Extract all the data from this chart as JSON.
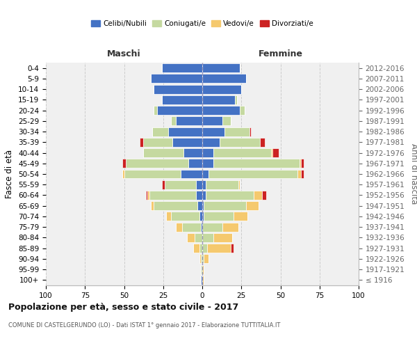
{
  "age_groups": [
    "100+",
    "95-99",
    "90-94",
    "85-89",
    "80-84",
    "75-79",
    "70-74",
    "65-69",
    "60-64",
    "55-59",
    "50-54",
    "45-49",
    "40-44",
    "35-39",
    "30-34",
    "25-29",
    "20-24",
    "15-19",
    "10-14",
    "5-9",
    "0-4"
  ],
  "birth_years": [
    "≤ 1916",
    "1917-1921",
    "1922-1926",
    "1927-1931",
    "1932-1936",
    "1937-1941",
    "1942-1946",
    "1947-1951",
    "1952-1956",
    "1957-1961",
    "1962-1966",
    "1967-1971",
    "1972-1976",
    "1977-1981",
    "1982-1986",
    "1987-1991",
    "1992-1996",
    "1997-2001",
    "2002-2006",
    "2007-2011",
    "2012-2016"
  ],
  "colors": {
    "celibe": "#4472c4",
    "coniugato": "#c5d9a0",
    "vedovo": "#f5c96e",
    "divorziato": "#cc2222"
  },
  "maschi": {
    "celibe": [
      1,
      0,
      0,
      0,
      0,
      1,
      2,
      3,
      4,
      4,
      14,
      9,
      12,
      19,
      22,
      17,
      29,
      26,
      31,
      33,
      26
    ],
    "coniugato": [
      0,
      1,
      1,
      2,
      5,
      12,
      18,
      28,
      30,
      20,
      36,
      40,
      26,
      19,
      10,
      3,
      2,
      0,
      0,
      0,
      0
    ],
    "vedovo": [
      0,
      0,
      1,
      4,
      5,
      4,
      3,
      2,
      1,
      0,
      1,
      0,
      0,
      0,
      0,
      0,
      0,
      0,
      0,
      0,
      0
    ],
    "divorziato": [
      0,
      0,
      0,
      0,
      0,
      0,
      0,
      0,
      1,
      2,
      0,
      2,
      0,
      2,
      0,
      0,
      0,
      0,
      0,
      0,
      0
    ]
  },
  "femmine": {
    "nubile": [
      0,
      0,
      0,
      0,
      0,
      0,
      1,
      1,
      2,
      2,
      4,
      7,
      7,
      11,
      14,
      13,
      24,
      21,
      25,
      28,
      24
    ],
    "coniugata": [
      0,
      0,
      1,
      3,
      7,
      13,
      19,
      27,
      31,
      21,
      57,
      55,
      37,
      26,
      16,
      5,
      3,
      1,
      0,
      0,
      0
    ],
    "vedova": [
      1,
      1,
      3,
      15,
      12,
      10,
      9,
      8,
      5,
      1,
      2,
      1,
      1,
      0,
      0,
      0,
      0,
      0,
      0,
      0,
      0
    ],
    "divorziata": [
      0,
      0,
      0,
      2,
      0,
      0,
      0,
      0,
      3,
      0,
      2,
      2,
      4,
      3,
      1,
      0,
      0,
      0,
      0,
      0,
      0
    ]
  },
  "xlim": 100,
  "title": "Popolazione per età, sesso e stato civile - 2017",
  "subtitle": "COMUNE DI CASTELGERUNDO (LO) - Dati ISTAT 1° gennaio 2017 - Elaborazione TUTTITALIA.IT",
  "ylabel_left": "Fasce di età",
  "ylabel_right": "Anni di nascita",
  "header_maschi": "Maschi",
  "header_femmine": "Femmine",
  "legend_labels": [
    "Celibi/Nubili",
    "Coniugati/e",
    "Vedovi/e",
    "Divorziati/e"
  ],
  "bg_color": "#ffffff",
  "plot_bg_color": "#f0f0f0",
  "grid_color": "#cccccc",
  "bar_height": 0.85
}
